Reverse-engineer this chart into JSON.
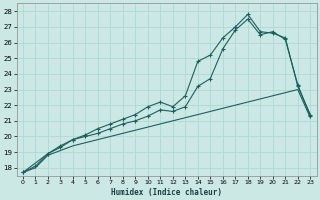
{
  "xlabel": "Humidex (Indice chaleur)",
  "bg_color": "#cce8e4",
  "grid_color": "#b0d8d4",
  "line_color": "#1a6060",
  "xlim": [
    -0.5,
    23.5
  ],
  "ylim": [
    17.5,
    28.5
  ],
  "xticks": [
    0,
    1,
    2,
    3,
    4,
    5,
    6,
    7,
    8,
    9,
    10,
    11,
    12,
    13,
    14,
    15,
    16,
    17,
    18,
    19,
    20,
    21,
    22,
    23
  ],
  "yticks": [
    18,
    19,
    20,
    21,
    22,
    23,
    24,
    25,
    26,
    27,
    28
  ],
  "line1_x": [
    0,
    1,
    2,
    3,
    4,
    5,
    6,
    7,
    8,
    9,
    10,
    11,
    12,
    13,
    14,
    15,
    16,
    17,
    18,
    19,
    20,
    21,
    22,
    23
  ],
  "line1_y": [
    17.7,
    18.1,
    18.9,
    19.4,
    19.8,
    20.1,
    20.5,
    20.8,
    21.1,
    21.4,
    21.9,
    22.2,
    21.9,
    22.6,
    24.8,
    25.2,
    26.3,
    27.0,
    27.8,
    26.7,
    26.6,
    26.3,
    23.2,
    21.4
  ],
  "line2_x": [
    0,
    2,
    3,
    4,
    5,
    6,
    7,
    8,
    9,
    10,
    11,
    12,
    13,
    14,
    15,
    16,
    17,
    18,
    19,
    20,
    21,
    22,
    23
  ],
  "line2_y": [
    17.7,
    18.9,
    19.3,
    19.8,
    20.0,
    20.2,
    20.5,
    20.8,
    21.0,
    21.3,
    21.7,
    21.6,
    21.9,
    23.2,
    23.7,
    25.6,
    26.8,
    27.5,
    26.5,
    26.7,
    26.2,
    23.3,
    21.3
  ],
  "line3_x": [
    0,
    1,
    2,
    3,
    4,
    5,
    6,
    7,
    8,
    9,
    10,
    11,
    12,
    13,
    14,
    15,
    16,
    17,
    18,
    19,
    20,
    21,
    22,
    23
  ],
  "line3_y": [
    17.7,
    18.0,
    18.8,
    19.1,
    19.4,
    19.6,
    19.8,
    20.0,
    20.2,
    20.4,
    20.6,
    20.8,
    21.0,
    21.2,
    21.4,
    21.6,
    21.8,
    22.0,
    22.2,
    22.4,
    22.6,
    22.8,
    23.0,
    21.2
  ]
}
